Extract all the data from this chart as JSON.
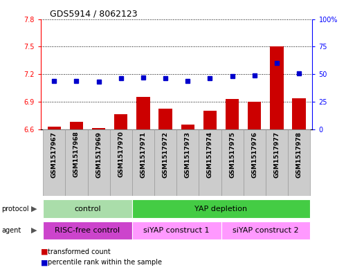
{
  "title": "GDS5914 / 8062123",
  "samples": [
    "GSM1517967",
    "GSM1517968",
    "GSM1517969",
    "GSM1517970",
    "GSM1517971",
    "GSM1517972",
    "GSM1517973",
    "GSM1517974",
    "GSM1517975",
    "GSM1517976",
    "GSM1517977",
    "GSM1517978"
  ],
  "bar_values": [
    6.63,
    6.68,
    6.61,
    6.76,
    6.95,
    6.82,
    6.65,
    6.8,
    6.93,
    6.9,
    7.5,
    6.94
  ],
  "dot_values": [
    44,
    44,
    43,
    46,
    47,
    46,
    44,
    46,
    48,
    49,
    60,
    51
  ],
  "ylim_left": [
    6.6,
    7.8
  ],
  "ylim_right": [
    0,
    100
  ],
  "yticks_left": [
    6.6,
    6.9,
    7.2,
    7.5,
    7.8
  ],
  "yticks_right": [
    0,
    25,
    50,
    75,
    100
  ],
  "bar_color": "#cc0000",
  "dot_color": "#0000cc",
  "protocol_groups": [
    {
      "label": "control",
      "start": 0,
      "end": 3,
      "color": "#aaddaa"
    },
    {
      "label": "YAP depletion",
      "start": 4,
      "end": 11,
      "color": "#44cc44"
    }
  ],
  "agent_groups": [
    {
      "label": "RISC-free control",
      "start": 0,
      "end": 3,
      "color": "#cc44cc"
    },
    {
      "label": "siYAP construct 1",
      "start": 4,
      "end": 7,
      "color": "#ff99ff"
    },
    {
      "label": "siYAP construct 2",
      "start": 8,
      "end": 11,
      "color": "#ff99ff"
    }
  ],
  "label_fontsize": 7,
  "tick_fontsize": 6.5,
  "sample_col_color": "#cccccc",
  "sample_col_edge": "#999999"
}
